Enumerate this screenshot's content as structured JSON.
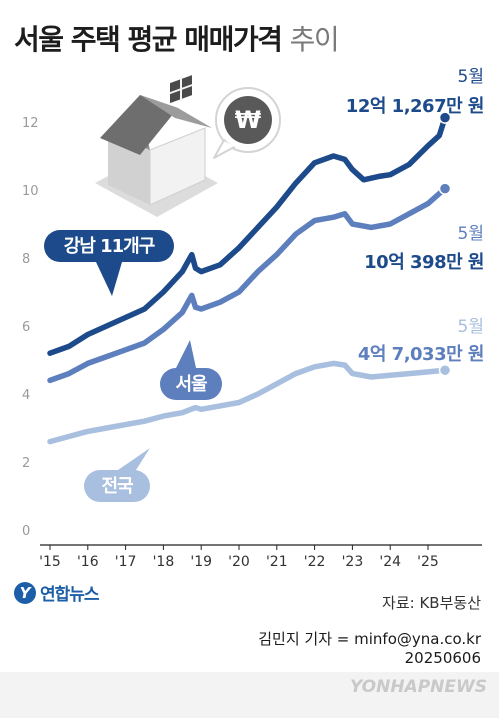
{
  "title": {
    "main": "서울 주택 평균 매매가격",
    "sub": "추이"
  },
  "chart_data": {
    "type": "line",
    "x": [
      "'15",
      "'16",
      "'17",
      "'18",
      "'19",
      "'20",
      "'21",
      "'22",
      "'23",
      "'24",
      "'25"
    ],
    "y_ticks": [
      0,
      2,
      4,
      6,
      8,
      10,
      12
    ],
    "ylim": [
      0,
      13
    ],
    "grid": false,
    "series": [
      {
        "name": "강남 11개구",
        "color": "#1c4a8a",
        "points": [
          [
            2015.0,
            5.2
          ],
          [
            2015.5,
            5.4
          ],
          [
            2016.0,
            5.75
          ],
          [
            2016.5,
            6.0
          ],
          [
            2017.0,
            6.25
          ],
          [
            2017.5,
            6.5
          ],
          [
            2018.0,
            7.0
          ],
          [
            2018.5,
            7.6
          ],
          [
            2018.75,
            8.1
          ],
          [
            2018.85,
            7.7
          ],
          [
            2019.0,
            7.6
          ],
          [
            2019.5,
            7.8
          ],
          [
            2020.0,
            8.3
          ],
          [
            2020.5,
            8.9
          ],
          [
            2021.0,
            9.5
          ],
          [
            2021.5,
            10.2
          ],
          [
            2022.0,
            10.8
          ],
          [
            2022.5,
            11.0
          ],
          [
            2022.8,
            10.9
          ],
          [
            2023.0,
            10.6
          ],
          [
            2023.3,
            10.3
          ],
          [
            2023.7,
            10.4
          ],
          [
            2024.0,
            10.45
          ],
          [
            2024.5,
            10.75
          ],
          [
            2025.0,
            11.3
          ],
          [
            2025.3,
            11.6
          ],
          [
            2025.45,
            12.13
          ]
        ]
      },
      {
        "name": "서울",
        "color": "#5e7fbd",
        "points": [
          [
            2015.0,
            4.4
          ],
          [
            2015.5,
            4.6
          ],
          [
            2016.0,
            4.9
          ],
          [
            2016.5,
            5.1
          ],
          [
            2017.0,
            5.3
          ],
          [
            2017.5,
            5.5
          ],
          [
            2018.0,
            5.9
          ],
          [
            2018.5,
            6.4
          ],
          [
            2018.75,
            6.9
          ],
          [
            2018.85,
            6.55
          ],
          [
            2019.0,
            6.5
          ],
          [
            2019.5,
            6.7
          ],
          [
            2020.0,
            7.0
          ],
          [
            2020.5,
            7.6
          ],
          [
            2021.0,
            8.1
          ],
          [
            2021.5,
            8.7
          ],
          [
            2022.0,
            9.1
          ],
          [
            2022.5,
            9.2
          ],
          [
            2022.8,
            9.3
          ],
          [
            2023.0,
            9.0
          ],
          [
            2023.5,
            8.9
          ],
          [
            2024.0,
            9.0
          ],
          [
            2024.5,
            9.3
          ],
          [
            2025.0,
            9.6
          ],
          [
            2025.45,
            10.04
          ]
        ]
      },
      {
        "name": "전국",
        "color": "#a9bfdf",
        "points": [
          [
            2015.0,
            2.6
          ],
          [
            2015.5,
            2.75
          ],
          [
            2016.0,
            2.9
          ],
          [
            2016.5,
            3.0
          ],
          [
            2017.0,
            3.1
          ],
          [
            2017.5,
            3.2
          ],
          [
            2018.0,
            3.35
          ],
          [
            2018.5,
            3.45
          ],
          [
            2018.85,
            3.6
          ],
          [
            2019.0,
            3.55
          ],
          [
            2019.5,
            3.65
          ],
          [
            2020.0,
            3.75
          ],
          [
            2020.5,
            4.0
          ],
          [
            2021.0,
            4.3
          ],
          [
            2021.5,
            4.6
          ],
          [
            2022.0,
            4.8
          ],
          [
            2022.5,
            4.9
          ],
          [
            2022.8,
            4.85
          ],
          [
            2023.0,
            4.6
          ],
          [
            2023.5,
            4.5
          ],
          [
            2024.0,
            4.55
          ],
          [
            2024.5,
            4.6
          ],
          [
            2025.0,
            4.65
          ],
          [
            2025.45,
            4.7
          ]
        ]
      }
    ],
    "annotations": [
      {
        "series": "강남 11개구",
        "month": "5월",
        "value_text": "12억 1,267만 원",
        "value": 12.1267
      },
      {
        "series": "서울",
        "month": "5월",
        "value_text": "10억 398만 원",
        "value": 10.0398
      },
      {
        "series": "전국",
        "month": "5월",
        "value_text": "4억 7,033만 원",
        "value": 4.7033
      }
    ],
    "series_labels": [
      {
        "series": "강남 11개구",
        "text": "강남 11개구"
      },
      {
        "series": "서울",
        "text": "서울"
      },
      {
        "series": "전국",
        "text": "전국"
      }
    ]
  },
  "icons": {
    "house": "house-icon",
    "won": "won-icon"
  },
  "source": "자료: KB부동산",
  "logo": {
    "mark": "Y",
    "name": "연합뉴스"
  },
  "credit": {
    "reporter": "김민지 기자 = minfo@yna.co.kr",
    "date": "20250606"
  },
  "watermark": "YONHAPNEWS"
}
